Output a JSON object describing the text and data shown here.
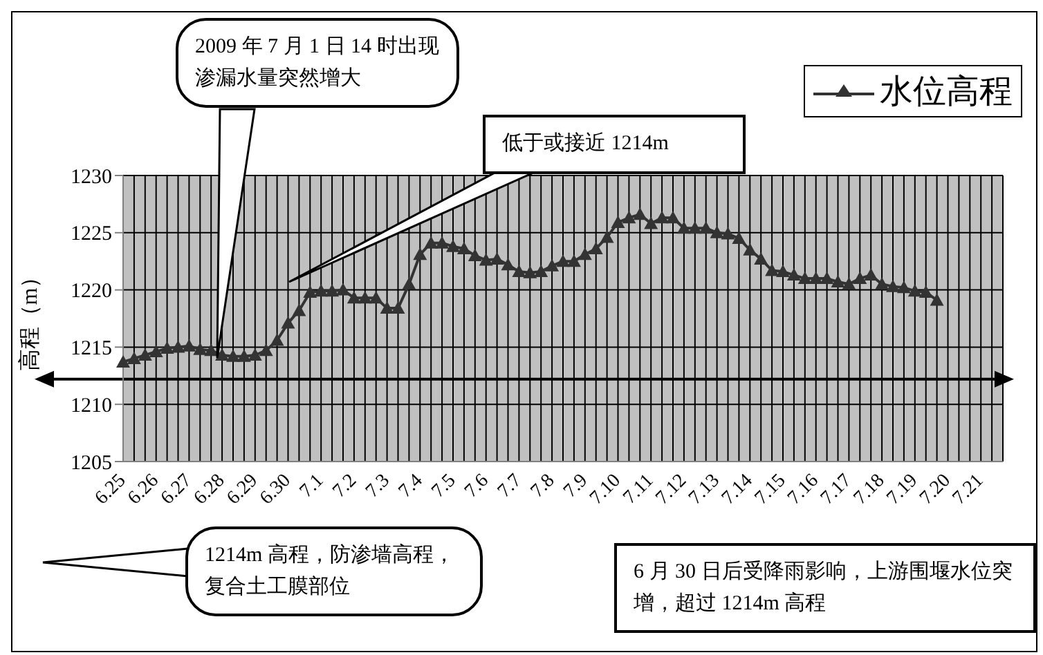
{
  "chart_data": {
    "type": "line",
    "ylabel": "高程（m）",
    "categories": [
      "6.25",
      null,
      null,
      "6.26",
      null,
      null,
      "6.27",
      null,
      null,
      "6.28",
      null,
      null,
      "6.29",
      null,
      null,
      "6.30",
      null,
      null,
      "7.1",
      null,
      null,
      "7.2",
      null,
      null,
      "7.3",
      null,
      null,
      "7.4",
      null,
      null,
      "7.5",
      null,
      null,
      "7.6",
      null,
      null,
      "7.7",
      null,
      null,
      "7.8",
      null,
      null,
      "7.9",
      null,
      null,
      "7.10",
      null,
      null,
      "7.11",
      null,
      null,
      "7.12",
      null,
      null,
      "7.13",
      null,
      null,
      "7.14",
      null,
      null,
      "7.15",
      null,
      null,
      "7.16",
      null,
      null,
      "7.17",
      null,
      null,
      "7.18",
      null,
      null,
      "7.19",
      null,
      null,
      "7.20",
      null,
      null,
      "7.21",
      null,
      null
    ],
    "series": [
      {
        "name": "水位高程",
        "color": "#333333",
        "values": [
          1213.7,
          1214.0,
          1214.3,
          1214.6,
          1214.9,
          1215.0,
          1215.1,
          1214.8,
          1214.7,
          1214.3,
          1214.2,
          1214.2,
          1214.3,
          1214.7,
          1215.6,
          1217.1,
          1218.2,
          1219.8,
          1219.9,
          1219.9,
          1220.0,
          1219.3,
          1219.3,
          1219.3,
          1218.4,
          1218.4,
          1220.5,
          1223.1,
          1224.1,
          1224.1,
          1223.8,
          1223.6,
          1223.0,
          1222.6,
          1222.7,
          1222.2,
          1221.6,
          1221.5,
          1221.6,
          1222.1,
          1222.5,
          1222.5,
          1223.1,
          1223.6,
          1224.6,
          1225.9,
          1226.3,
          1226.6,
          1225.8,
          1226.3,
          1226.3,
          1225.4,
          1225.4,
          1225.4,
          1225.0,
          1224.9,
          1224.5,
          1223.5,
          1222.7,
          1221.7,
          1221.6,
          1221.3,
          1221.0,
          1221.0,
          1221.0,
          1220.7,
          1220.5,
          1221.0,
          1221.3,
          1220.5,
          1220.3,
          1220.2,
          1219.9,
          1219.8,
          1219.1,
          null,
          null,
          null,
          null,
          null,
          null
        ]
      }
    ],
    "ylim": [
      1205,
      1230
    ],
    "yticks": [
      1205,
      1210,
      1215,
      1220,
      1225,
      1230
    ],
    "grid": true,
    "legend": "top right",
    "marker": "triangle",
    "line_style": "solid",
    "ref_lines": [
      {
        "axis": "y",
        "value": 1212.2,
        "color": "#000000"
      }
    ],
    "annotations": [
      "2009 年 7 月 1 日 14 时出现渗漏水量突然增大",
      "低于或接近 1214m",
      "1214m 高程，防渗墙高程，复合土工膜部位",
      "6 月 30 日后受降雨影响，上游围堰水位突增，超过 1214m 高程"
    ]
  }
}
